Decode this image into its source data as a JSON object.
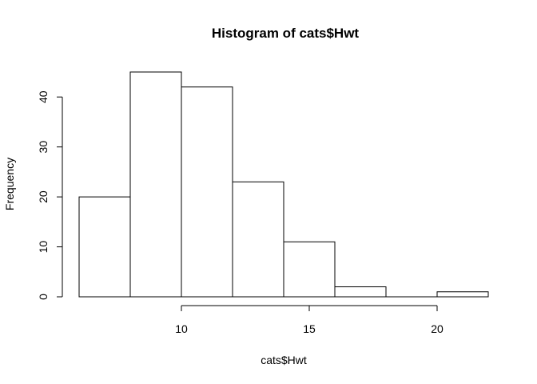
{
  "chart_data": {
    "type": "bar",
    "title": "Histogram of cats$Hwt",
    "xlabel": "cats$Hwt",
    "ylabel": "Frequency",
    "bins": [
      {
        "from": 6,
        "to": 8,
        "count": 20
      },
      {
        "from": 8,
        "to": 10,
        "count": 45
      },
      {
        "from": 10,
        "to": 12,
        "count": 42
      },
      {
        "from": 12,
        "to": 14,
        "count": 23
      },
      {
        "from": 14,
        "to": 16,
        "count": 11
      },
      {
        "from": 16,
        "to": 18,
        "count": 2
      },
      {
        "from": 18,
        "to": 20,
        "count": 0
      },
      {
        "from": 20,
        "to": 22,
        "count": 1
      }
    ],
    "xlim": [
      6,
      22
    ],
    "ylim": [
      0,
      45
    ],
    "x_ticks": [
      10,
      15,
      20
    ],
    "y_ticks": [
      0,
      10,
      20,
      30,
      40
    ],
    "grid": false,
    "bar_fill": "#ffffff",
    "bar_stroke": "#000000"
  }
}
